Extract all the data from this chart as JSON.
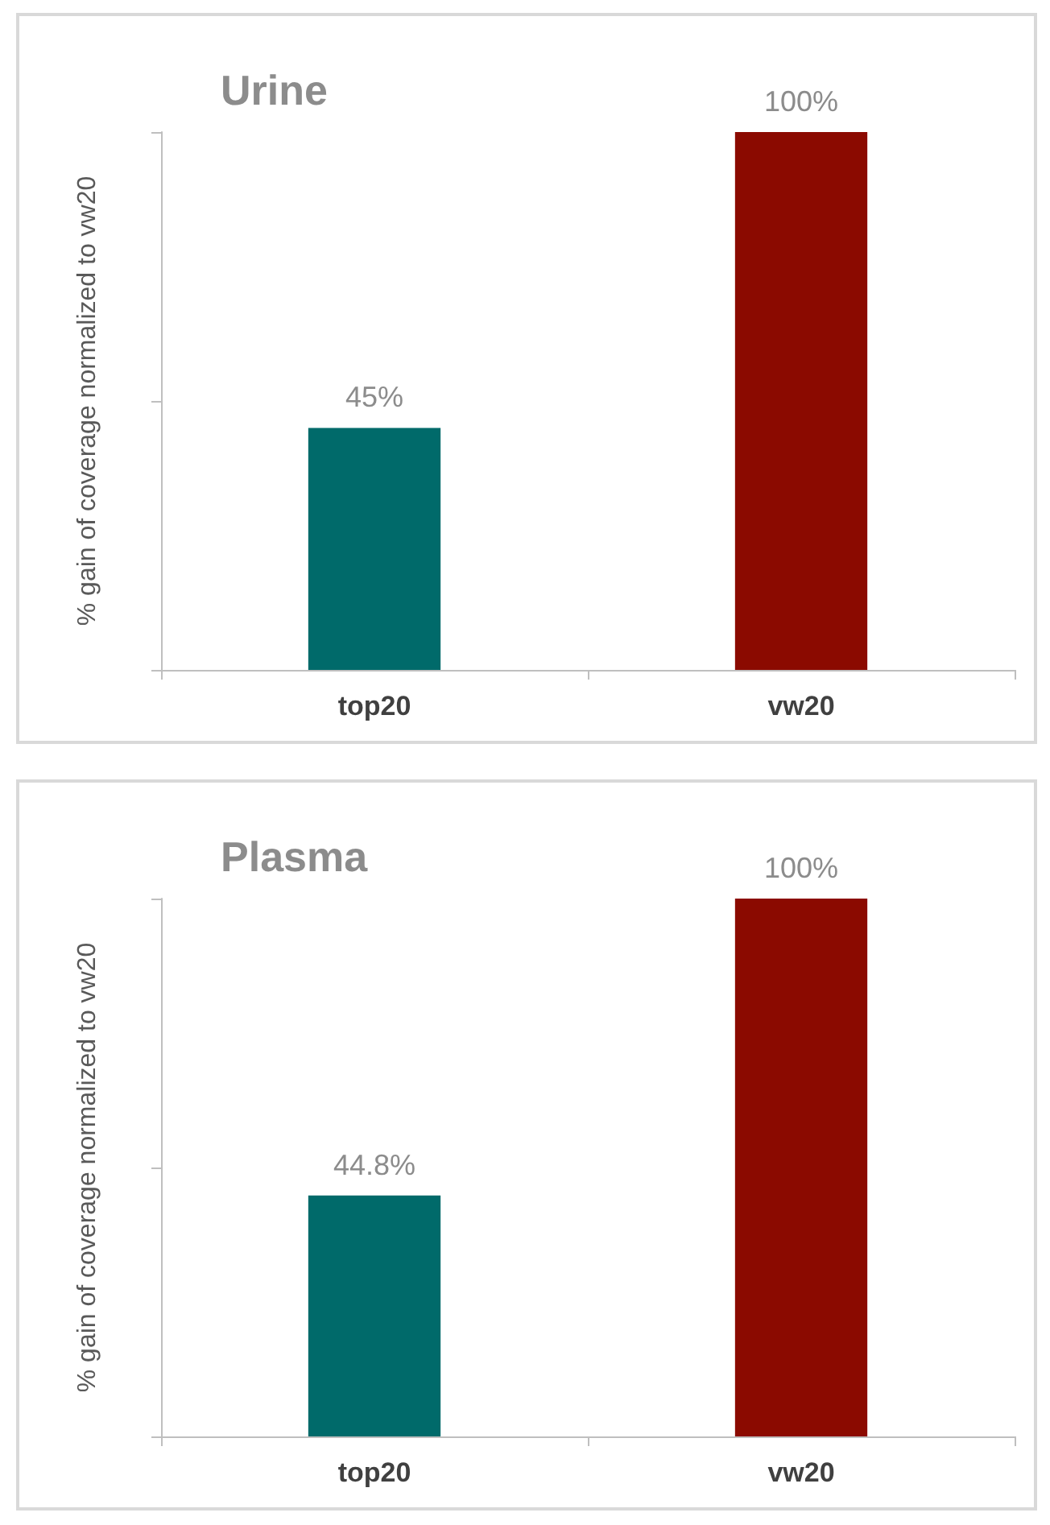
{
  "chart_data": [
    {
      "type": "bar",
      "title": "Urine",
      "ylabel": "% gain of coverage normalized to vw20",
      "categories": [
        "top20",
        "vw20"
      ],
      "values": [
        45,
        100
      ],
      "colors": [
        "#006a6a",
        "#8b0a00"
      ],
      "value_labels": [
        "45%",
        "100%"
      ],
      "ylim": [
        0,
        100
      ],
      "yticks": [
        {
          "value": 0,
          "label": null
        },
        {
          "value": 50,
          "label": null
        },
        {
          "value": 100,
          "label": null
        }
      ],
      "tick_labels": "x",
      "grid": false
    },
    {
      "type": "bar",
      "title": "Plasma",
      "ylabel": "% gain of coverage normalized to vw20",
      "categories": [
        "top20",
        "vw20"
      ],
      "values": [
        44.8,
        100
      ],
      "colors": [
        "#006a6a",
        "#8b0a00"
      ],
      "value_labels": [
        "44.8%",
        "100%"
      ],
      "ylim": [
        0,
        100
      ],
      "yticks": [
        {
          "value": 0,
          "label": null
        },
        {
          "value": 50,
          "label": null
        },
        {
          "value": 100,
          "label": null
        }
      ],
      "tick_labels": "x",
      "grid": false
    }
  ]
}
